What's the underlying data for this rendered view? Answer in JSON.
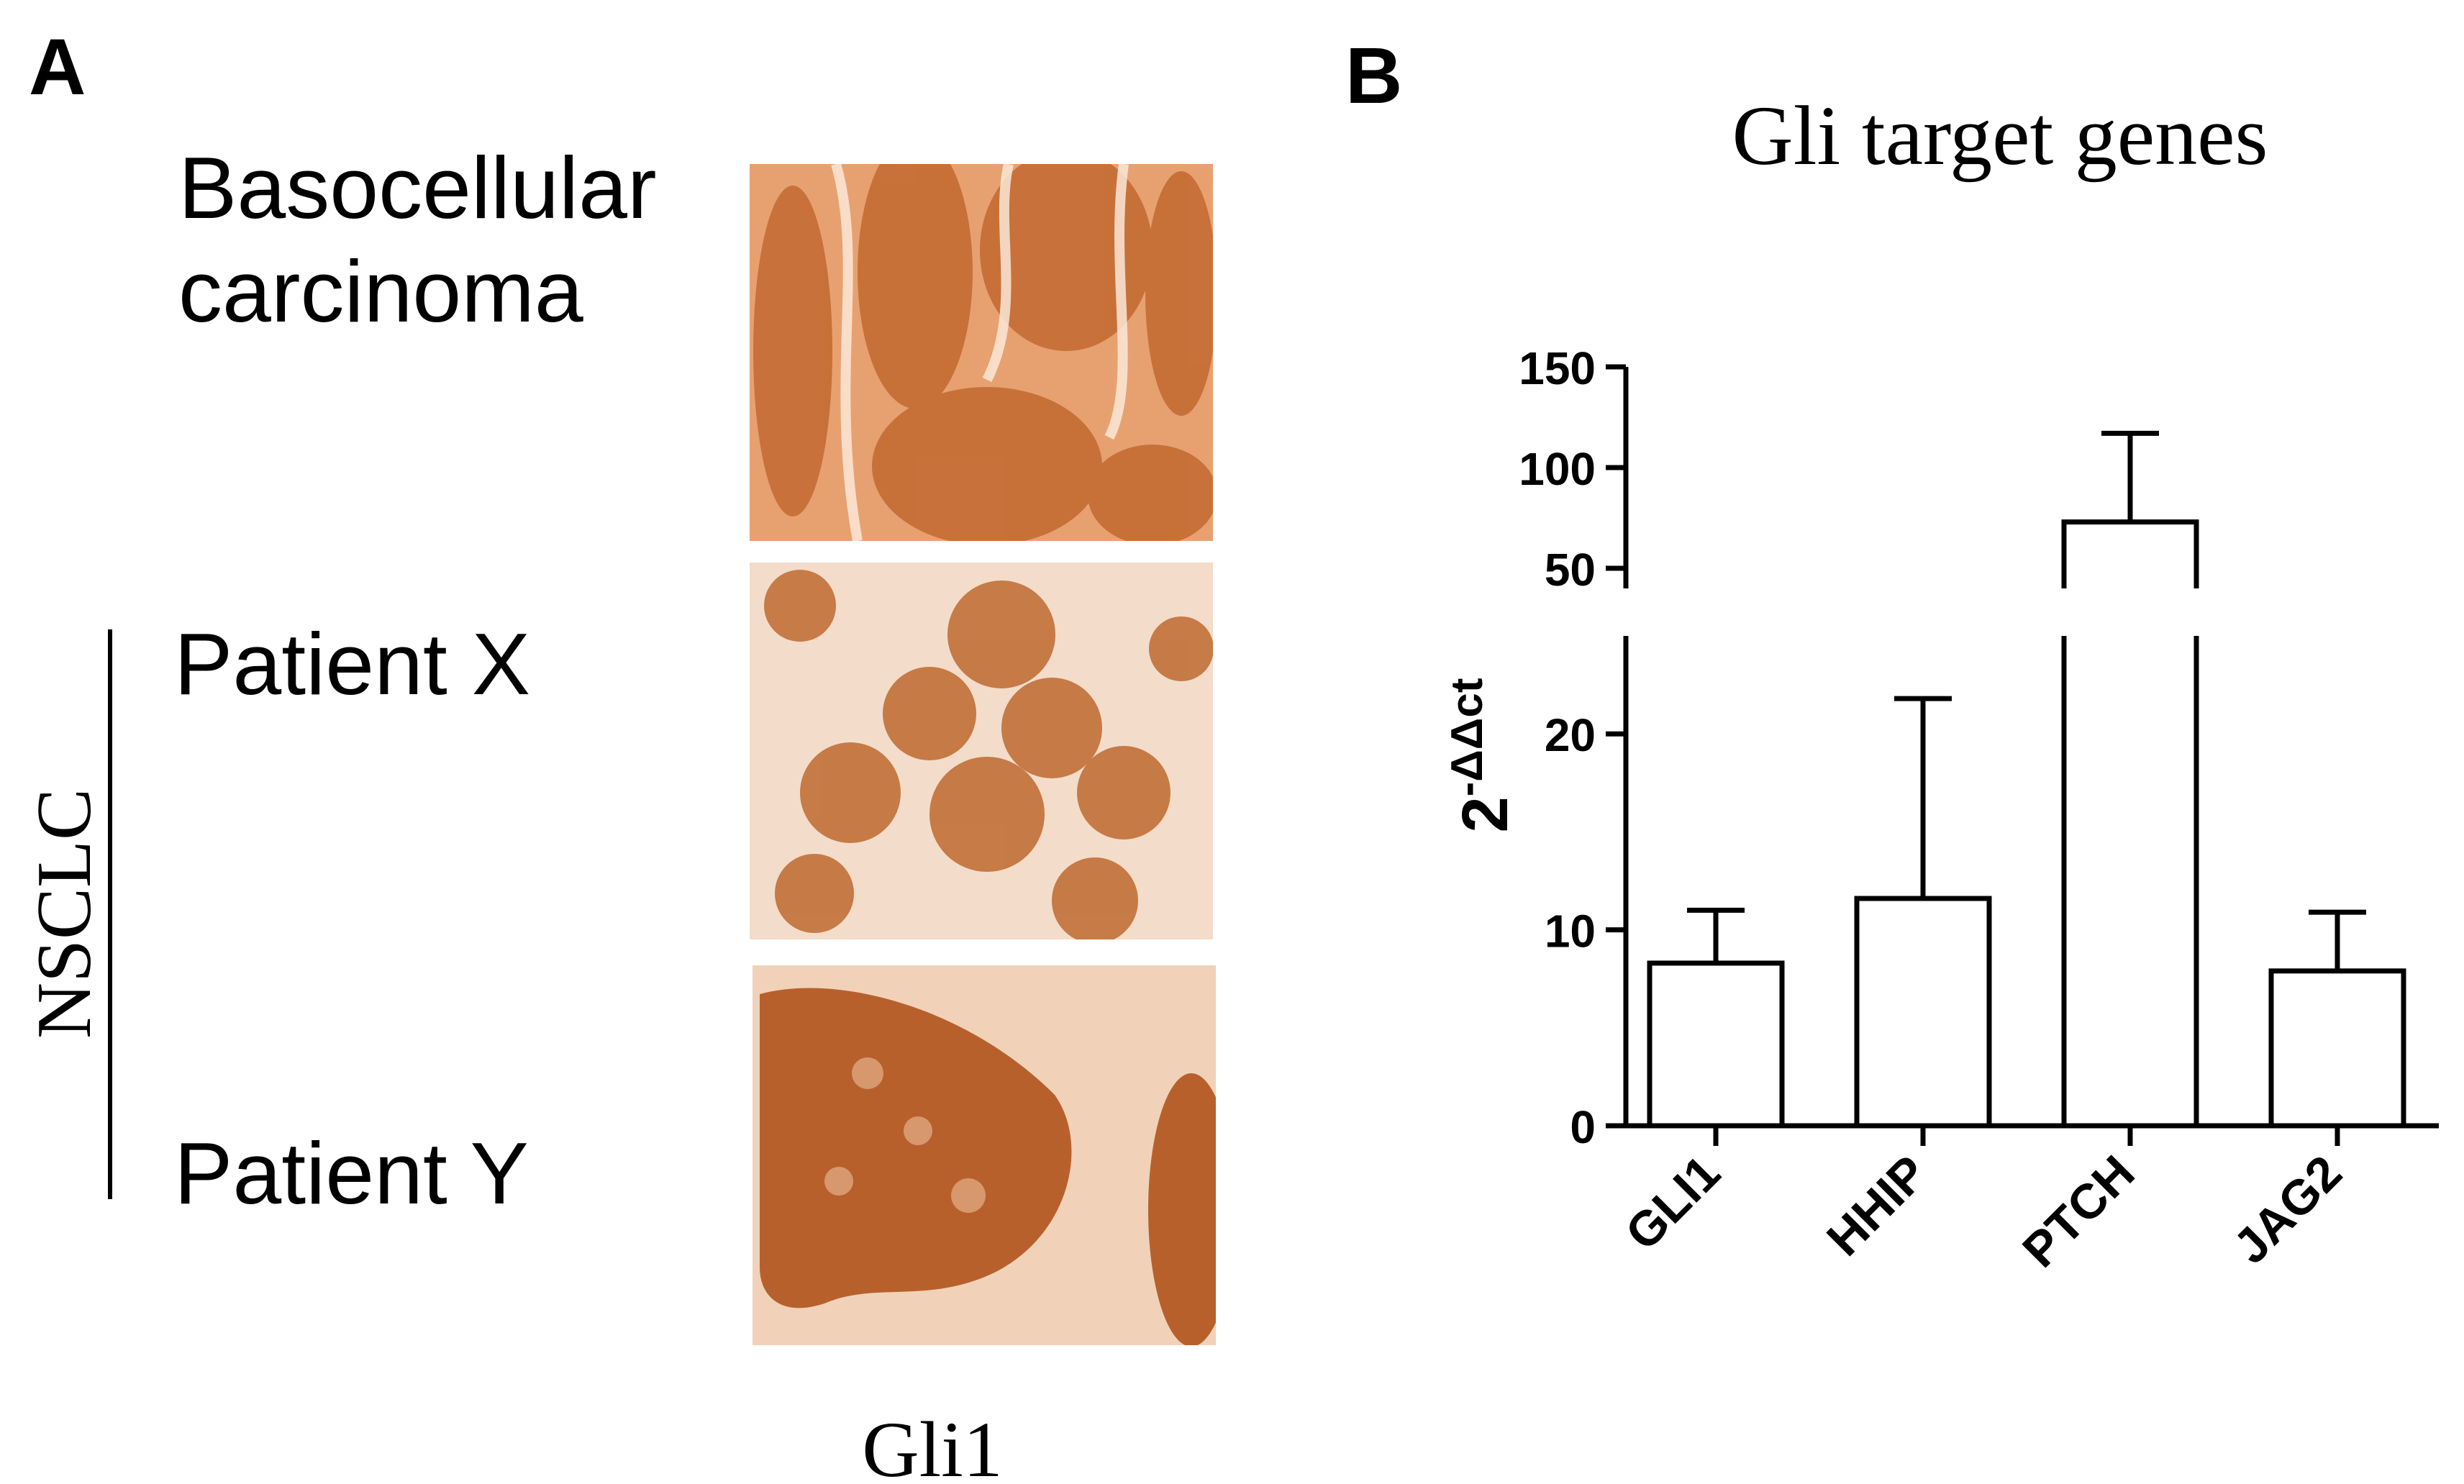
{
  "panel_a": {
    "letter": "A",
    "rows": [
      {
        "line1": "Basocellular",
        "line2": "carcinoma"
      },
      {
        "line1": "Patient X"
      },
      {
        "line1": "Patient Y"
      }
    ],
    "group_label": "NSCLC",
    "stain_label": "Gli1",
    "images": [
      {
        "name": "basocellular-carcinoma-ihc-image",
        "base_color": "#e7a170",
        "cell_color": "#c46c34"
      },
      {
        "name": "patient-x-ihc-image",
        "base_color": "#f3dcca",
        "cell_color": "#c27038"
      },
      {
        "name": "patient-y-ihc-image",
        "base_color": "#f1d2b8",
        "cell_color": "#b3561f"
      }
    ]
  },
  "panel_b": {
    "letter": "B",
    "chart_data": {
      "type": "bar",
      "title": "Gli target genes",
      "xlabel": "",
      "ylabel_base": "2",
      "ylabel_superscript": "-ΔΔct",
      "categories": [
        "GLI1",
        "HHIP",
        "PTCH",
        "JAG2"
      ],
      "series": [
        {
          "values": [
            8.3,
            11.6,
            73,
            7.9
          ],
          "error_upper": [
            11.0,
            21.8,
            117,
            10.9
          ]
        }
      ],
      "axis_break": true,
      "ylim_lower": [
        0,
        25
      ],
      "ylim_upper": [
        40,
        150
      ],
      "yticks_lower": [
        0,
        10,
        20
      ],
      "yticks_upper": [
        50,
        100,
        150
      ],
      "bar_fill": "#ffffff",
      "bar_stroke": "#000000",
      "grid": false
    }
  }
}
